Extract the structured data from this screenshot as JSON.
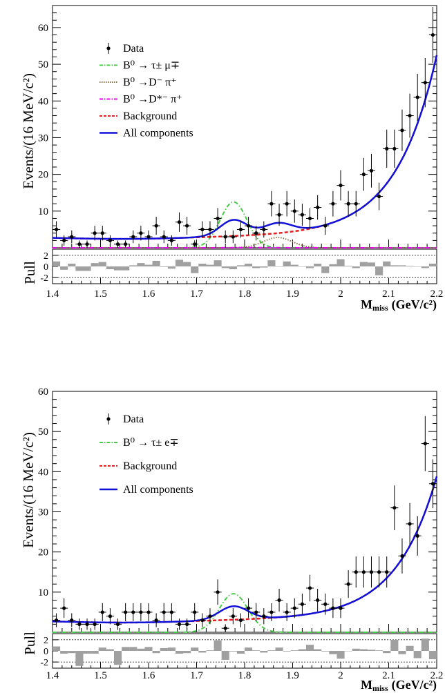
{
  "chart_data": [
    {
      "type": "scatter",
      "panel": "top",
      "ylabel": "Events/(16 MeV/c²)",
      "xlabel": "M",
      "xlabel_sub": "miss",
      "xlabel_unit": "(GeV/c²)",
      "xlim": [
        1.4,
        2.2
      ],
      "ylim": [
        0,
        66
      ],
      "yticks": [
        10,
        20,
        30,
        40,
        50,
        60
      ],
      "xticks": [
        1.4,
        1.5,
        1.6,
        1.7,
        1.8,
        1.9,
        2,
        2.1,
        2.2
      ],
      "legend": [
        {
          "label": "Data",
          "style": "data",
          "color": "#000000"
        },
        {
          "label": "B⁰ → τ± μ∓",
          "style": "dashdot",
          "color": "#44cc44"
        },
        {
          "label": "B⁰ →D⁻ π⁺",
          "style": "dotted",
          "color": "#8b6f4a"
        },
        {
          "label": "B⁰ →D*⁻ π⁺",
          "style": "dashdot",
          "color": "#ee00ee"
        },
        {
          "label": "Background",
          "style": "dashed",
          "color": "#e02020"
        },
        {
          "label": "All components",
          "style": "solid",
          "color": "#1010d8"
        }
      ],
      "data_x": [
        1.408,
        1.424,
        1.44,
        1.456,
        1.472,
        1.488,
        1.504,
        1.52,
        1.536,
        1.552,
        1.568,
        1.584,
        1.6,
        1.616,
        1.632,
        1.648,
        1.664,
        1.68,
        1.696,
        1.712,
        1.728,
        1.744,
        1.76,
        1.776,
        1.792,
        1.808,
        1.824,
        1.84,
        1.856,
        1.872,
        1.888,
        1.904,
        1.92,
        1.936,
        1.952,
        1.968,
        1.984,
        2.0,
        2.016,
        2.032,
        2.048,
        2.064,
        2.08,
        2.096,
        2.112,
        2.128,
        2.144,
        2.16,
        2.176,
        2.192
      ],
      "data_y": [
        5,
        2,
        3,
        1,
        1,
        4,
        4,
        2,
        1,
        1,
        3,
        4,
        3,
        6,
        3,
        2,
        7,
        6,
        1,
        5,
        5,
        8,
        3,
        3,
        5,
        6,
        4,
        5,
        12,
        9,
        12,
        10,
        9,
        8,
        11,
        6,
        12,
        17,
        12,
        12,
        20,
        21,
        14,
        27,
        27,
        32,
        36,
        41,
        45,
        58
      ],
      "signal_mu": {
        "mean": 1.777,
        "sigma": 0.028,
        "peak": 12.5
      },
      "peaking_Dpi": {
        "mean": 1.869,
        "sigma": 0.03,
        "peak": 2.8
      },
      "pulls": [
        0.9,
        -0.6,
        0.5,
        -0.8,
        -0.8,
        0.6,
        0.8,
        -0.5,
        -0.7,
        -0.7,
        0.2,
        0.6,
        0.3,
        1.0,
        -0.1,
        -0.4,
        1.2,
        0.8,
        -1.2,
        0.5,
        0.3,
        1.1,
        -0.3,
        -0.5,
        0.2,
        0.5,
        -0.3,
        -0.2,
        1.1,
        0.0,
        0.9,
        0.3,
        0.0,
        -0.3,
        0.5,
        -1.2,
        0.4,
        1.3,
        0.1,
        -0.3,
        0.8,
        0.7,
        -1.6,
        0.9,
        0.2,
        0.2,
        0.1,
        0.0,
        -0.3,
        0.5
      ]
    },
    {
      "type": "scatter",
      "panel": "bottom",
      "ylabel": "Events/(16 MeV/c²)",
      "xlabel": "M",
      "xlabel_sub": "miss",
      "xlabel_unit": "(GeV/c²)",
      "xlim": [
        1.4,
        2.2
      ],
      "ylim": [
        0,
        60
      ],
      "yticks": [
        10,
        20,
        30,
        40,
        50,
        60
      ],
      "xticks": [
        1.4,
        1.5,
        1.6,
        1.7,
        1.8,
        1.9,
        2,
        2.1,
        2.2
      ],
      "legend": [
        {
          "label": "Data",
          "style": "data",
          "color": "#000000"
        },
        {
          "label": "B⁰ → τ± e∓",
          "style": "dashdot",
          "color": "#44cc44"
        },
        {
          "label": "Background",
          "style": "dashed",
          "color": "#e02020"
        },
        {
          "label": "All components",
          "style": "solid",
          "color": "#1010d8"
        }
      ],
      "data_x": [
        1.408,
        1.424,
        1.44,
        1.456,
        1.472,
        1.488,
        1.504,
        1.52,
        1.536,
        1.552,
        1.568,
        1.584,
        1.6,
        1.616,
        1.632,
        1.648,
        1.664,
        1.68,
        1.696,
        1.712,
        1.728,
        1.744,
        1.76,
        1.776,
        1.792,
        1.808,
        1.824,
        1.84,
        1.856,
        1.872,
        1.888,
        1.904,
        1.92,
        1.936,
        1.952,
        1.968,
        1.984,
        2.0,
        2.016,
        2.032,
        2.048,
        2.064,
        2.08,
        2.096,
        2.112,
        2.128,
        2.144,
        2.16,
        2.176,
        2.192
      ],
      "data_y": [
        3,
        6,
        3,
        2,
        2,
        2,
        5,
        4,
        2,
        5,
        5,
        5,
        5,
        3,
        5,
        5,
        2,
        2,
        5,
        3,
        4,
        10,
        1,
        4,
        3,
        6,
        5,
        4,
        5,
        8,
        5,
        6,
        7,
        11,
        8,
        7,
        6,
        6,
        12,
        15,
        15,
        15,
        15,
        15,
        31,
        19,
        27,
        24,
        47,
        37
      ],
      "signal_e": {
        "mean": 1.777,
        "sigma": 0.03,
        "peak": 9.6
      },
      "pulls": [
        0.8,
        -0.5,
        -0.4,
        -2.7,
        -0.5,
        -0.5,
        0.6,
        0.3,
        -2.5,
        0.7,
        0.7,
        0.4,
        0.7,
        -0.4,
        0.5,
        0.6,
        -0.5,
        -0.4,
        0.6,
        -0.3,
        0.1,
        1.9,
        -1.6,
        -0.1,
        -0.5,
        0.6,
        0.1,
        -0.3,
        0.1,
        0.6,
        -0.1,
        0.1,
        0.3,
        1.1,
        0.3,
        -0.1,
        -0.6,
        -1.4,
        0.0,
        0.4,
        0.3,
        0.2,
        0.1,
        -0.4,
        2.0,
        -0.6,
        0.9,
        -1.3,
        2.2,
        -1.5
      ]
    }
  ],
  "pull_label": "Pull",
  "pull_ticks": [
    -2,
    0,
    2
  ]
}
